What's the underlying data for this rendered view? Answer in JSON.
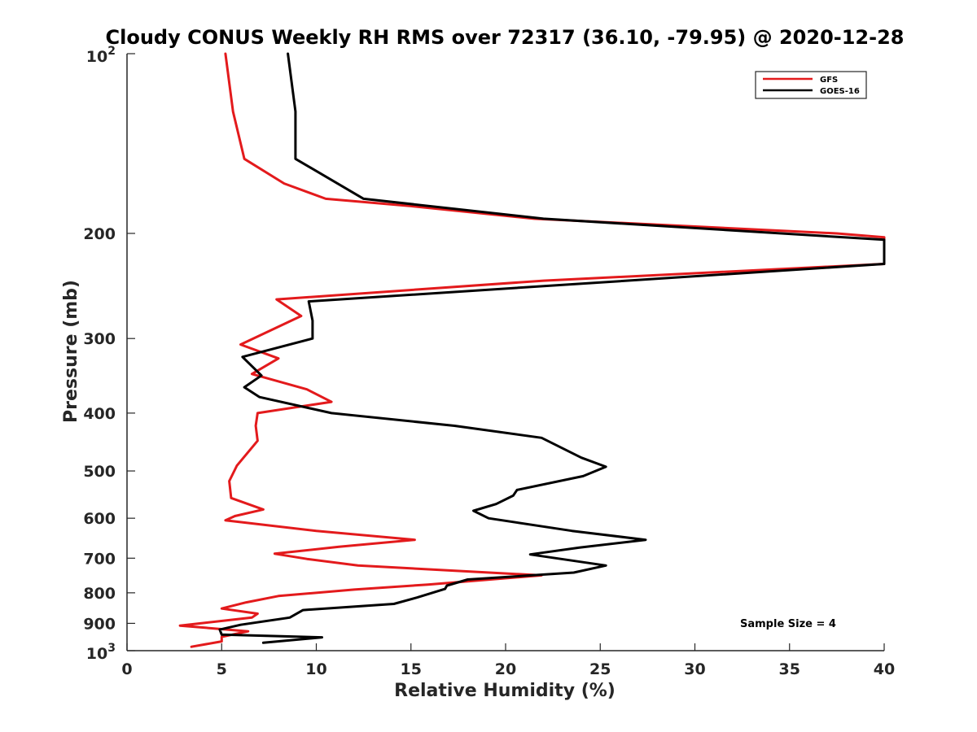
{
  "chart_data": {
    "type": "line",
    "title": "Cloudy CONUS Weekly RH RMS over 72317 (36.10, -79.95) @ 2020-12-28",
    "xlabel": "Relative Humidity (%)",
    "ylabel": "Pressure (mb)",
    "xlim": [
      0,
      40
    ],
    "ylim": [
      100,
      1000
    ],
    "y_scale": "log",
    "y_reversed": true,
    "grid": false,
    "legend_position": "top-right",
    "x_ticks": [
      "0",
      "5",
      "10",
      "15",
      "20",
      "25",
      "30",
      "35",
      "40"
    ],
    "y_ticks": [
      {
        "value": 100,
        "base": "10",
        "exp": "2"
      },
      {
        "value": 200,
        "label": "200"
      },
      {
        "value": 300,
        "label": "300"
      },
      {
        "value": 400,
        "label": "400"
      },
      {
        "value": 500,
        "label": "500"
      },
      {
        "value": 600,
        "label": "600"
      },
      {
        "value": 700,
        "label": "700"
      },
      {
        "value": 800,
        "label": "800"
      },
      {
        "value": 900,
        "label": "900"
      },
      {
        "value": 1000,
        "base": "10",
        "exp": "3"
      }
    ],
    "annotation": "Sample Size = 4",
    "series": [
      {
        "name": "GFS",
        "color": "#e31a1c",
        "points": [
          [
            5.2,
            100
          ],
          [
            5.6,
            125
          ],
          [
            6.2,
            150
          ],
          [
            8.3,
            165
          ],
          [
            10.5,
            175
          ],
          [
            15.0,
            180
          ],
          [
            21.5,
            189
          ],
          [
            37.5,
            200
          ],
          [
            40.0,
            203
          ],
          [
            40.0,
            225
          ],
          [
            22.0,
            240
          ],
          [
            7.9,
            258
          ],
          [
            9.2,
            275
          ],
          [
            6.0,
            307
          ],
          [
            8.0,
            324
          ],
          [
            6.6,
            344
          ],
          [
            9.5,
            365
          ],
          [
            10.8,
            383
          ],
          [
            6.9,
            400
          ],
          [
            6.8,
            420
          ],
          [
            6.9,
            445
          ],
          [
            5.8,
            490
          ],
          [
            5.4,
            520
          ],
          [
            5.5,
            555
          ],
          [
            7.2,
            580
          ],
          [
            5.7,
            595
          ],
          [
            5.2,
            605
          ],
          [
            10.0,
            630
          ],
          [
            15.2,
            652
          ],
          [
            11.2,
            670
          ],
          [
            7.8,
            688
          ],
          [
            9.5,
            702
          ],
          [
            12.2,
            720
          ],
          [
            21.9,
            748
          ],
          [
            15.9,
            775
          ],
          [
            12.0,
            790
          ],
          [
            8.0,
            810
          ],
          [
            6.3,
            830
          ],
          [
            5.0,
            850
          ],
          [
            6.9,
            867
          ],
          [
            6.6,
            880
          ],
          [
            2.8,
            908
          ],
          [
            6.4,
            928
          ],
          [
            5.0,
            948
          ],
          [
            5.0,
            965
          ],
          [
            3.4,
            985
          ]
        ]
      },
      {
        "name": "GOES-16",
        "color": "#000000",
        "points": [
          [
            8.5,
            100
          ],
          [
            8.9,
            125
          ],
          [
            8.9,
            150
          ],
          [
            12.5,
            175
          ],
          [
            22.0,
            189
          ],
          [
            40.0,
            205
          ],
          [
            40.0,
            225
          ],
          [
            9.6,
            260
          ],
          [
            9.8,
            280
          ],
          [
            9.8,
            300
          ],
          [
            6.1,
            322
          ],
          [
            7.1,
            346
          ],
          [
            6.2,
            362
          ],
          [
            7.0,
            376
          ],
          [
            10.8,
            400
          ],
          [
            17.3,
            420
          ],
          [
            21.9,
            440
          ],
          [
            24.0,
            475
          ],
          [
            25.3,
            492
          ],
          [
            24.1,
            510
          ],
          [
            20.6,
            538
          ],
          [
            20.4,
            550
          ],
          [
            19.5,
            568
          ],
          [
            18.3,
            583
          ],
          [
            19.1,
            600
          ],
          [
            23.5,
            630
          ],
          [
            27.4,
            652
          ],
          [
            23.9,
            672
          ],
          [
            21.3,
            690
          ],
          [
            25.3,
            720
          ],
          [
            23.6,
            740
          ],
          [
            18.0,
            760
          ],
          [
            16.9,
            778
          ],
          [
            16.8,
            788
          ],
          [
            15.3,
            815
          ],
          [
            14.1,
            835
          ],
          [
            9.3,
            855
          ],
          [
            8.6,
            880
          ],
          [
            6.0,
            905
          ],
          [
            4.9,
            922
          ],
          [
            5.0,
            940
          ],
          [
            10.3,
            950
          ],
          [
            7.2,
            970
          ]
        ]
      }
    ]
  }
}
